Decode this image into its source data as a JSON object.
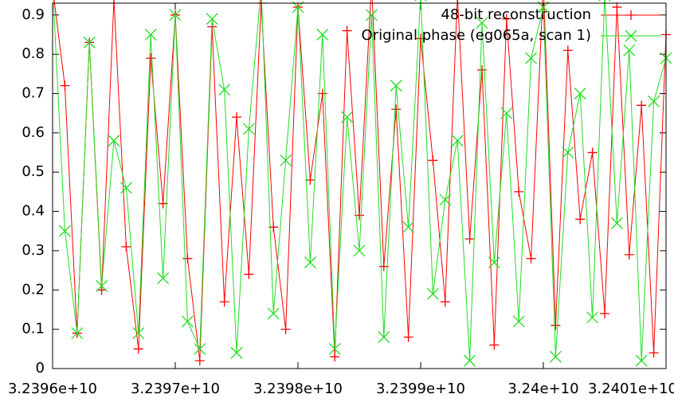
{
  "chart_data": {
    "type": "line",
    "x": [
      32396000000,
      32396100000,
      32396200000,
      32396300000,
      32396400000,
      32396500000,
      32396600000,
      32396700000,
      32396800000,
      32396900000,
      32397000000,
      32397100000,
      32397200000,
      32397300000,
      32397400000,
      32397500000,
      32397600000,
      32397700000,
      32397800000,
      32397900000,
      32398000000,
      32398100000,
      32398200000,
      32398300000,
      32398400000,
      32398500000,
      32398600000,
      32398700000,
      32398800000,
      32398900000,
      32399000000,
      32399100000,
      32399200000,
      32399300000,
      32399400000,
      32399500000,
      32399600000,
      32399700000,
      32399800000,
      32399900000,
      32400000000,
      32400100000,
      32400200000,
      32400300000,
      32400400000,
      32400500000,
      32400600000,
      32400700000,
      32400800000,
      32400900000,
      32401000000
    ],
    "series": [
      {
        "name": "48-bit reconstruction",
        "color": "#ff0000",
        "marker": "plus",
        "values": [
          0.97,
          0.72,
          0.09,
          0.83,
          0.2,
          0.94,
          0.31,
          0.05,
          0.79,
          0.42,
          0.9,
          0.28,
          0.02,
          0.87,
          0.17,
          0.64,
          0.24,
          0.93,
          0.36,
          0.1,
          0.92,
          0.48,
          0.7,
          0.03,
          0.86,
          0.39,
          0.98,
          0.26,
          0.66,
          0.08,
          0.84,
          0.53,
          0.17,
          0.95,
          0.33,
          0.76,
          0.06,
          0.89,
          0.45,
          0.28,
          0.98,
          0.11,
          0.81,
          0.38,
          0.55,
          0.14,
          0.92,
          0.29,
          0.67,
          0.04,
          0.85
        ]
      },
      {
        "name": "Original phase (eg065a, scan 1)",
        "color": "#22dd22",
        "marker": "cross",
        "values": [
          0.98,
          0.35,
          0.09,
          0.83,
          0.21,
          0.58,
          0.46,
          0.09,
          0.85,
          0.23,
          0.9,
          0.12,
          0.05,
          0.89,
          0.71,
          0.04,
          0.61,
          0.97,
          0.14,
          0.53,
          0.92,
          0.27,
          0.85,
          0.05,
          0.64,
          0.3,
          0.9,
          0.08,
          0.72,
          0.36,
          0.95,
          0.19,
          0.43,
          0.58,
          0.02,
          0.88,
          0.27,
          0.65,
          0.12,
          0.79,
          0.92,
          0.03,
          0.55,
          0.7,
          0.13,
          0.95,
          0.37,
          0.81,
          0.02,
          0.68,
          0.79
        ]
      }
    ],
    "xlim": [
      32396000000,
      32401000000
    ],
    "xticks": [
      {
        "value": 32396000000,
        "label": "3.2396e+10"
      },
      {
        "value": 32397000000,
        "label": "3.2397e+10"
      },
      {
        "value": 32398000000,
        "label": "3.2398e+10"
      },
      {
        "value": 32399000000,
        "label": "3.2399e+10"
      },
      {
        "value": 32400000000,
        "label": "3.24e+10"
      },
      {
        "value": 32401000000,
        "label": "3.2401e+10"
      }
    ],
    "ylim": [
      0,
      0.93
    ],
    "yticks": [
      0,
      0.1,
      0.2,
      0.3,
      0.4,
      0.5,
      0.6,
      0.7,
      0.8,
      0.9
    ],
    "legend": "top-right"
  }
}
